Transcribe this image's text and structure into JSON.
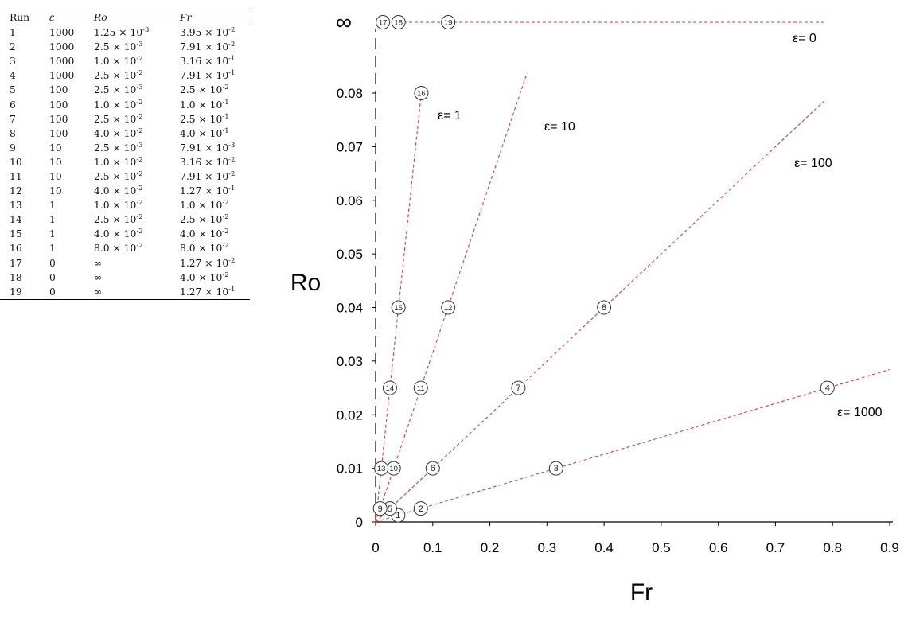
{
  "table": {
    "headers": [
      "Run",
      "ε",
      "Ro",
      "Fr"
    ],
    "rows": [
      {
        "run": "1",
        "eps": "1000",
        "ro": {
          "m": "1.25",
          "e": "-3"
        },
        "fr": {
          "m": "3.95",
          "e": "-2"
        }
      },
      {
        "run": "2",
        "eps": "1000",
        "ro": {
          "m": "2.5",
          "e": "-3"
        },
        "fr": {
          "m": "7.91",
          "e": "-2"
        }
      },
      {
        "run": "3",
        "eps": "1000",
        "ro": {
          "m": "1.0",
          "e": "-2"
        },
        "fr": {
          "m": "3.16",
          "e": "-1"
        }
      },
      {
        "run": "4",
        "eps": "1000",
        "ro": {
          "m": "2.5",
          "e": "-2"
        },
        "fr": {
          "m": "7.91",
          "e": "-1"
        }
      },
      {
        "run": "5",
        "eps": "100",
        "ro": {
          "m": "2.5",
          "e": "-3"
        },
        "fr": {
          "m": "2.5",
          "e": "-2"
        }
      },
      {
        "run": "6",
        "eps": "100",
        "ro": {
          "m": "1.0",
          "e": "-2"
        },
        "fr": {
          "m": "1.0",
          "e": "-1"
        }
      },
      {
        "run": "7",
        "eps": "100",
        "ro": {
          "m": "2.5",
          "e": "-2"
        },
        "fr": {
          "m": "2.5",
          "e": "-1"
        }
      },
      {
        "run": "8",
        "eps": "100",
        "ro": {
          "m": "4.0",
          "e": "-2"
        },
        "fr": {
          "m": "4.0",
          "e": "-1"
        }
      },
      {
        "run": "9",
        "eps": "10",
        "ro": {
          "m": "2.5",
          "e": "-3"
        },
        "fr": {
          "m": "7.91",
          "e": "-3"
        }
      },
      {
        "run": "10",
        "eps": "10",
        "ro": {
          "m": "1.0",
          "e": "-2"
        },
        "fr": {
          "m": "3.16",
          "e": "-2"
        }
      },
      {
        "run": "11",
        "eps": "10",
        "ro": {
          "m": "2.5",
          "e": "-2"
        },
        "fr": {
          "m": "7.91",
          "e": "-2"
        }
      },
      {
        "run": "12",
        "eps": "10",
        "ro": {
          "m": "4.0",
          "e": "-2"
        },
        "fr": {
          "m": "1.27",
          "e": "-1"
        }
      },
      {
        "run": "13",
        "eps": "1",
        "ro": {
          "m": "1.0",
          "e": "-2"
        },
        "fr": {
          "m": "1.0",
          "e": "-2"
        }
      },
      {
        "run": "14",
        "eps": "1",
        "ro": {
          "m": "2.5",
          "e": "-2"
        },
        "fr": {
          "m": "2.5",
          "e": "-2"
        }
      },
      {
        "run": "15",
        "eps": "1",
        "ro": {
          "m": "4.0",
          "e": "-2"
        },
        "fr": {
          "m": "4.0",
          "e": "-2"
        }
      },
      {
        "run": "16",
        "eps": "1",
        "ro": {
          "m": "8.0",
          "e": "-2"
        },
        "fr": {
          "m": "8.0",
          "e": "-2"
        }
      },
      {
        "run": "17",
        "eps": "0",
        "ro": {
          "inf": "∞"
        },
        "fr": {
          "m": "1.27",
          "e": "-2"
        }
      },
      {
        "run": "18",
        "eps": "0",
        "ro": {
          "inf": "∞"
        },
        "fr": {
          "m": "4.0",
          "e": "-2"
        }
      },
      {
        "run": "19",
        "eps": "0",
        "ro": {
          "inf": "∞"
        },
        "fr": {
          "m": "1.27",
          "e": "-1"
        }
      }
    ]
  },
  "chart_data": {
    "type": "scatter",
    "xlabel": "Fr",
    "ylabel": "Ro",
    "xlim": [
      0,
      0.9
    ],
    "ylim": [
      0,
      0.08
    ],
    "xticks": [
      "0",
      "0.1",
      "0.2",
      "0.3",
      "0.4",
      "0.5",
      "0.6",
      "0.7",
      "0.8",
      "0.9"
    ],
    "yticks": [
      "0",
      "0.01",
      "0.02",
      "0.03",
      "0.04",
      "0.05",
      "0.06",
      "0.07",
      "0.08"
    ],
    "infinity_label": "∞",
    "points": [
      {
        "label": "1",
        "fr": 0.0395,
        "ro": 0.00125
      },
      {
        "label": "2",
        "fr": 0.0791,
        "ro": 0.0025
      },
      {
        "label": "3",
        "fr": 0.316,
        "ro": 0.01
      },
      {
        "label": "4",
        "fr": 0.791,
        "ro": 0.025
      },
      {
        "label": "5",
        "fr": 0.025,
        "ro": 0.0025
      },
      {
        "label": "6",
        "fr": 0.1,
        "ro": 0.01
      },
      {
        "label": "7",
        "fr": 0.25,
        "ro": 0.025
      },
      {
        "label": "8",
        "fr": 0.4,
        "ro": 0.04
      },
      {
        "label": "9",
        "fr": 0.00791,
        "ro": 0.0025
      },
      {
        "label": "10",
        "fr": 0.0316,
        "ro": 0.01
      },
      {
        "label": "11",
        "fr": 0.0791,
        "ro": 0.025
      },
      {
        "label": "12",
        "fr": 0.127,
        "ro": 0.04
      },
      {
        "label": "13",
        "fr": 0.01,
        "ro": 0.01
      },
      {
        "label": "14",
        "fr": 0.025,
        "ro": 0.025
      },
      {
        "label": "15",
        "fr": 0.04,
        "ro": 0.04
      },
      {
        "label": "16",
        "fr": 0.08,
        "ro": 0.08
      },
      {
        "label": "17",
        "fr": 0.0127,
        "ro": "∞"
      },
      {
        "label": "18",
        "fr": 0.04,
        "ro": "∞"
      },
      {
        "label": "19",
        "fr": 0.127,
        "ro": "∞"
      }
    ],
    "lines": [
      {
        "label": "ε= 1000",
        "slope": 0.0316,
        "x_end": 0.9
      },
      {
        "label": "ε= 100",
        "slope": 0.1,
        "x_end": 0.785
      },
      {
        "label": "ε= 10",
        "slope": 0.316,
        "x_end": 0.265
      },
      {
        "label": "ε= 1",
        "slope": 1.0,
        "x_end": 0.08
      },
      {
        "label": "ε= 0",
        "at_infinity": true,
        "x_end": 0.785
      }
    ],
    "line_color": "#e03a3a",
    "marker_color": "#333333"
  }
}
